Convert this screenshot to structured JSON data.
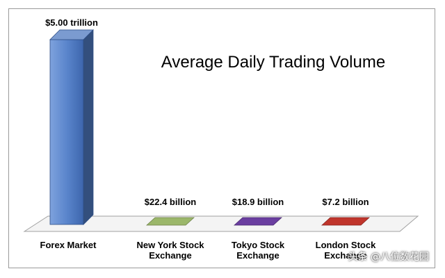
{
  "chart_data": {
    "type": "bar",
    "title": "Average Daily Trading Volume",
    "unit": "USD billions",
    "categories": [
      "Forex Market",
      "New York Stock Exchange",
      "Tokyo Stock Exchange",
      "London Stock Exchange"
    ],
    "category_lines": [
      [
        "Forex Market"
      ],
      [
        "New York Stock",
        "Exchange"
      ],
      [
        "Tokyo Stock",
        "Exchange"
      ],
      [
        "London Stock",
        "Exchange"
      ]
    ],
    "values": [
      5000,
      22.4,
      18.9,
      7.2
    ],
    "data_labels": [
      "$5.00 trillion",
      "$22.4 billion",
      "$18.9 billion",
      "$7.2 billion"
    ],
    "colors": [
      "#4f79c0",
      "#9bb76a",
      "#6a3ea0",
      "#c0352c"
    ],
    "ylim": [
      0,
      5000
    ],
    "grid": false,
    "legend": "none",
    "xlabel": "",
    "ylabel": ""
  },
  "watermark": "头条 @八位数花园"
}
